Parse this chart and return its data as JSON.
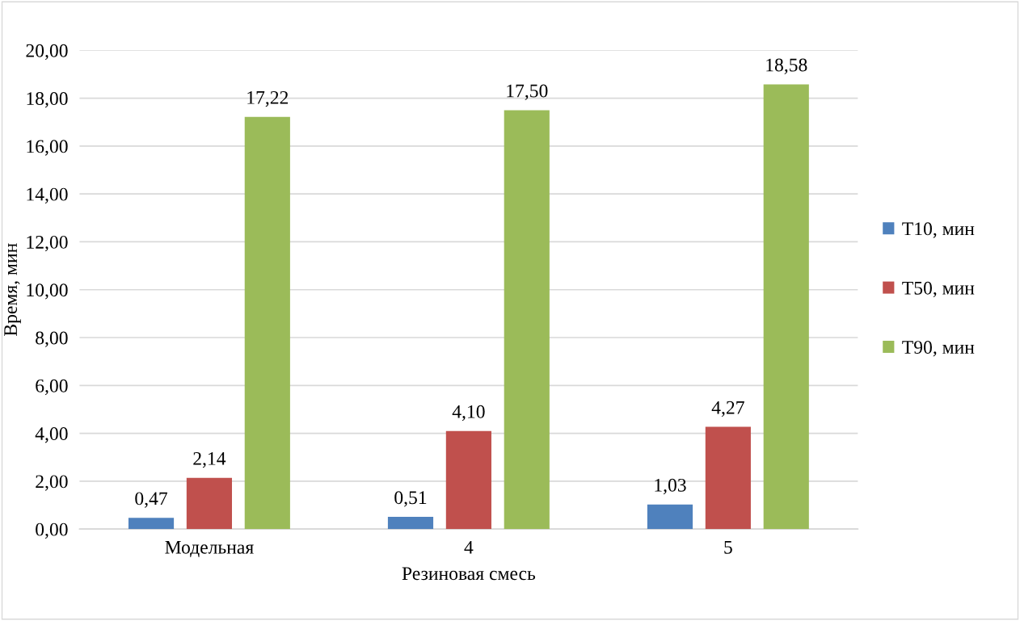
{
  "chart_data": {
    "type": "bar",
    "xlabel": "Резиновая смесь",
    "ylabel": "Время, мин",
    "categories": [
      "Модельная",
      "4",
      "5"
    ],
    "series": [
      {
        "name": "T10, мин",
        "color": "#4f81bd",
        "values": [
          0.47,
          0.51,
          1.03
        ],
        "value_labels": [
          "0,47",
          "0,51",
          "1,03"
        ]
      },
      {
        "name": "T50, мин",
        "color": "#c0504d",
        "values": [
          2.14,
          4.1,
          4.27
        ],
        "value_labels": [
          "2,14",
          "4,10",
          "4,27"
        ]
      },
      {
        "name": "T90, мин",
        "color": "#9bbb59",
        "values": [
          17.22,
          17.5,
          18.58
        ],
        "value_labels": [
          "17,22",
          "17,50",
          "18,58"
        ]
      }
    ],
    "ylim": [
      0,
      20
    ],
    "yticks": [
      {
        "value": 0,
        "label": "0,00"
      },
      {
        "value": 2,
        "label": "2,00"
      },
      {
        "value": 4,
        "label": "4,00"
      },
      {
        "value": 6,
        "label": "6,00"
      },
      {
        "value": 8,
        "label": "8,00"
      },
      {
        "value": 10,
        "label": "10,00"
      },
      {
        "value": 12,
        "label": "12,00"
      },
      {
        "value": 14,
        "label": "14,00"
      },
      {
        "value": 16,
        "label": "16,00"
      },
      {
        "value": 18,
        "label": "18,00"
      },
      {
        "value": 20,
        "label": "20,00"
      }
    ],
    "grid": "y",
    "legend": "right"
  }
}
